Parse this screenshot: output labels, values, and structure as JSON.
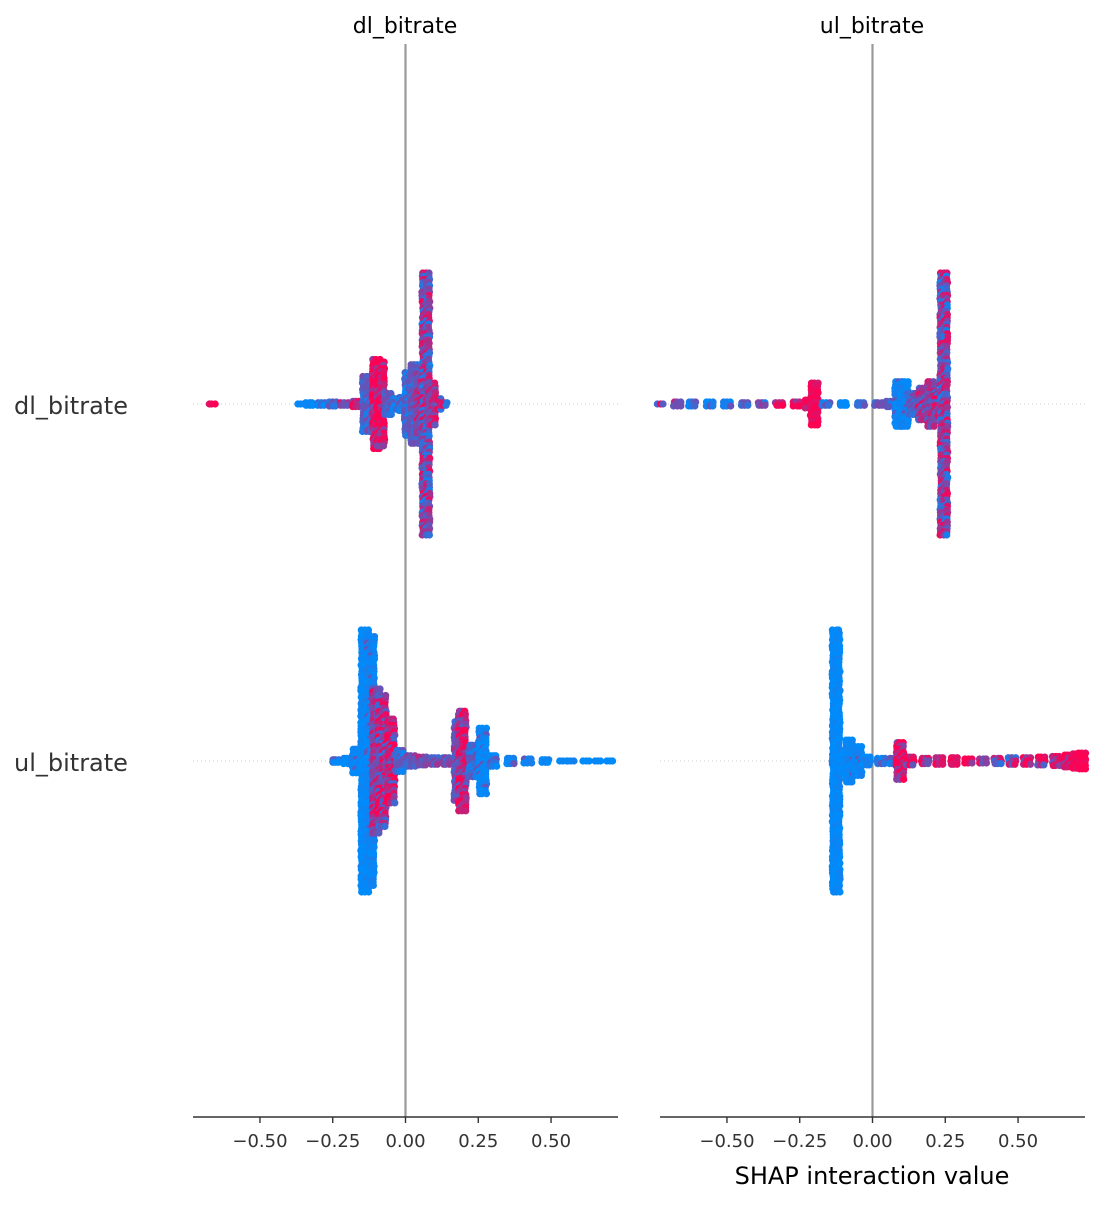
{
  "chart_data": {
    "type": "scatter",
    "title": "",
    "xlabel": "SHAP interaction value",
    "rows": [
      "dl_bitrate",
      "ul_bitrate"
    ],
    "xlim": [
      -0.73,
      0.73
    ],
    "xticks": [
      -0.5,
      -0.25,
      0.0,
      0.25,
      0.5
    ],
    "xtick_labels": [
      "−0.50",
      "−0.25",
      "0.00",
      "0.25",
      "0.50"
    ],
    "colors": {
      "low": "#008bfb",
      "high": "#ff0052",
      "mid": "#7b4fe0",
      "axis": "#333333",
      "zero_line": "#999999",
      "row_line": "#cccccc"
    },
    "panels": [
      {
        "title": "dl_bitrate",
        "cells": [
          {
            "row": "dl_bitrate",
            "clusters": [
              {
                "x": -0.665,
                "half_height": 0.0,
                "mix": 1.0
              },
              {
                "x": -0.36,
                "half_height": 0.005,
                "mix": 0.0
              },
              {
                "x": -0.33,
                "half_height": 0.01,
                "mix": 0.0
              },
              {
                "x": -0.29,
                "half_height": 0.01,
                "mix": 0.1
              },
              {
                "x": -0.25,
                "half_height": 0.015,
                "mix": 0.3
              },
              {
                "x": -0.21,
                "half_height": 0.01,
                "mix": 0.5
              },
              {
                "x": -0.17,
                "half_height": 0.02,
                "mix": 0.6
              },
              {
                "x": -0.135,
                "half_height": 0.21,
                "mix": 0.25
              },
              {
                "x": -0.12,
                "half_height": 0.2,
                "mix": 0.25
              },
              {
                "x": -0.1,
                "half_height": 0.34,
                "mix": 0.8
              },
              {
                "x": -0.085,
                "half_height": 0.32,
                "mix": 0.9
              },
              {
                "x": -0.06,
                "half_height": 0.08,
                "mix": 0.3
              },
              {
                "x": -0.03,
                "half_height": 0.04,
                "mix": 0.1
              },
              {
                "x": -0.01,
                "half_height": 0.05,
                "mix": 0.1
              },
              {
                "x": 0.01,
                "half_height": 0.24,
                "mix": 0.15
              },
              {
                "x": 0.03,
                "half_height": 0.3,
                "mix": 0.3
              },
              {
                "x": 0.05,
                "half_height": 0.22,
                "mix": 0.45
              },
              {
                "x": 0.07,
                "half_height": 1.0,
                "mix": 0.5
              },
              {
                "x": 0.09,
                "half_height": 0.16,
                "mix": 0.45
              },
              {
                "x": 0.11,
                "half_height": 0.04,
                "mix": 0.5
              },
              {
                "x": 0.13,
                "half_height": 0.01,
                "mix": 0.55
              }
            ]
          },
          {
            "row": "ul_bitrate",
            "clusters": [
              {
                "x": -0.24,
                "half_height": 0.01,
                "mix": 0.1
              },
              {
                "x": -0.2,
                "half_height": 0.02,
                "mix": 0.0
              },
              {
                "x": -0.17,
                "half_height": 0.09,
                "mix": 0.05
              },
              {
                "x": -0.14,
                "half_height": 1.0,
                "mix": 0.0
              },
              {
                "x": -0.12,
                "half_height": 0.95,
                "mix": 0.05
              },
              {
                "x": -0.1,
                "half_height": 0.55,
                "mix": 0.45
              },
              {
                "x": -0.08,
                "half_height": 0.5,
                "mix": 0.6
              },
              {
                "x": -0.05,
                "half_height": 0.32,
                "mix": 0.7
              },
              {
                "x": -0.02,
                "half_height": 0.08,
                "mix": 0.2
              },
              {
                "x": 0.02,
                "half_height": 0.04,
                "mix": 0.3
              },
              {
                "x": 0.06,
                "half_height": 0.03,
                "mix": 0.4
              },
              {
                "x": 0.1,
                "half_height": 0.025,
                "mix": 0.3
              },
              {
                "x": 0.14,
                "half_height": 0.025,
                "mix": 0.3
              },
              {
                "x": 0.18,
                "half_height": 0.3,
                "mix": 0.35
              },
              {
                "x": 0.195,
                "half_height": 0.38,
                "mix": 0.75
              },
              {
                "x": 0.23,
                "half_height": 0.12,
                "mix": 0.2
              },
              {
                "x": 0.265,
                "half_height": 0.25,
                "mix": 0.05
              },
              {
                "x": 0.3,
                "half_height": 0.04,
                "mix": 0.1
              },
              {
                "x": 0.36,
                "half_height": 0.02,
                "mix": 0.05
              },
              {
                "x": 0.42,
                "half_height": 0.015,
                "mix": 0.05
              },
              {
                "x": 0.48,
                "half_height": 0.01,
                "mix": 0.0
              },
              {
                "x": 0.54,
                "half_height": 0.005,
                "mix": 0.0
              },
              {
                "x": 0.57,
                "half_height": 0.0,
                "mix": 0.0
              },
              {
                "x": 0.62,
                "half_height": 0.005,
                "mix": 0.0
              },
              {
                "x": 0.66,
                "half_height": 0.005,
                "mix": 0.0
              },
              {
                "x": 0.7,
                "half_height": 0.0,
                "mix": 0.0
              }
            ]
          }
        ]
      },
      {
        "title": "ul_bitrate",
        "cells": [
          {
            "row": "dl_bitrate",
            "clusters": [
              {
                "x": -0.73,
                "half_height": 0.0,
                "mix": 0.6
              },
              {
                "x": -0.67,
                "half_height": 0.015,
                "mix": 0.4
              },
              {
                "x": -0.62,
                "half_height": 0.015,
                "mix": 0.1
              },
              {
                "x": -0.56,
                "half_height": 0.015,
                "mix": 0.05
              },
              {
                "x": -0.5,
                "half_height": 0.015,
                "mix": 0.05
              },
              {
                "x": -0.44,
                "half_height": 0.01,
                "mix": 0.3
              },
              {
                "x": -0.38,
                "half_height": 0.01,
                "mix": 0.5
              },
              {
                "x": -0.32,
                "half_height": 0.01,
                "mix": 0.7
              },
              {
                "x": -0.26,
                "half_height": 0.015,
                "mix": 0.8
              },
              {
                "x": -0.22,
                "half_height": 0.03,
                "mix": 0.9
              },
              {
                "x": -0.2,
                "half_height": 0.16,
                "mix": 0.95
              },
              {
                "x": -0.16,
                "half_height": 0.01,
                "mix": 0.2
              },
              {
                "x": -0.1,
                "half_height": 0.01,
                "mix": 0.0
              },
              {
                "x": -0.04,
                "half_height": 0.01,
                "mix": 0.1
              },
              {
                "x": 0.02,
                "half_height": 0.01,
                "mix": 0.3
              },
              {
                "x": 0.06,
                "half_height": 0.02,
                "mix": 0.2
              },
              {
                "x": 0.09,
                "half_height": 0.17,
                "mix": 0.05
              },
              {
                "x": 0.11,
                "half_height": 0.17,
                "mix": 0.05
              },
              {
                "x": 0.14,
                "half_height": 0.08,
                "mix": 0.3
              },
              {
                "x": 0.17,
                "half_height": 0.12,
                "mix": 0.55
              },
              {
                "x": 0.2,
                "half_height": 0.17,
                "mix": 0.4
              },
              {
                "x": 0.225,
                "half_height": 0.09,
                "mix": 0.6
              },
              {
                "x": 0.245,
                "half_height": 1.0,
                "mix": 0.5
              }
            ]
          },
          {
            "row": "ul_bitrate",
            "clusters": [
              {
                "x": -0.125,
                "half_height": 1.0,
                "mix": 0.0
              },
              {
                "x": -0.1,
                "half_height": 0.08,
                "mix": 0.0
              },
              {
                "x": -0.08,
                "half_height": 0.16,
                "mix": 0.05
              },
              {
                "x": -0.05,
                "half_height": 0.11,
                "mix": 0.05
              },
              {
                "x": -0.02,
                "half_height": 0.03,
                "mix": 0.05
              },
              {
                "x": 0.03,
                "half_height": 0.02,
                "mix": 0.1
              },
              {
                "x": 0.07,
                "half_height": 0.02,
                "mix": 0.2
              },
              {
                "x": 0.095,
                "half_height": 0.14,
                "mix": 0.9
              },
              {
                "x": 0.13,
                "half_height": 0.03,
                "mix": 0.8
              },
              {
                "x": 0.18,
                "half_height": 0.02,
                "mix": 0.7
              },
              {
                "x": 0.23,
                "half_height": 0.025,
                "mix": 0.9
              },
              {
                "x": 0.28,
                "half_height": 0.025,
                "mix": 0.95
              },
              {
                "x": 0.33,
                "half_height": 0.015,
                "mix": 0.9
              },
              {
                "x": 0.38,
                "half_height": 0.015,
                "mix": 0.7
              },
              {
                "x": 0.43,
                "half_height": 0.02,
                "mix": 0.6
              },
              {
                "x": 0.48,
                "half_height": 0.025,
                "mix": 0.55
              },
              {
                "x": 0.53,
                "half_height": 0.025,
                "mix": 0.65
              },
              {
                "x": 0.58,
                "half_height": 0.03,
                "mix": 0.75
              },
              {
                "x": 0.63,
                "half_height": 0.035,
                "mix": 0.85
              },
              {
                "x": 0.67,
                "half_height": 0.045,
                "mix": 0.9
              },
              {
                "x": 0.7,
                "half_height": 0.055,
                "mix": 0.95
              },
              {
                "x": 0.72,
                "half_height": 0.06,
                "mix": 1.0
              }
            ]
          }
        ]
      }
    ]
  }
}
